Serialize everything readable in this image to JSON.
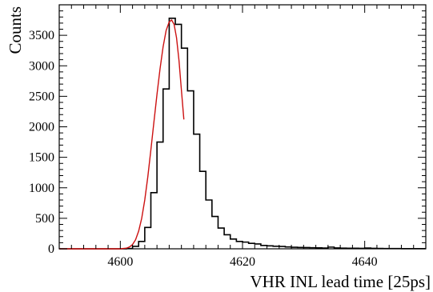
{
  "chart_data": {
    "type": "line",
    "title": "",
    "xlabel": "VHR INL lead time [25ps]",
    "ylabel": "Counts",
    "xlim": [
      4590,
      4650
    ],
    "ylim": [
      0,
      4000
    ],
    "x_ticks": [
      4600,
      4620,
      4640
    ],
    "x_tick_labels": [
      "4600",
      "4620",
      "4640"
    ],
    "y_ticks": [
      0,
      500,
      1000,
      1500,
      2000,
      2500,
      3000,
      3500
    ],
    "y_tick_labels": [
      "0",
      "500",
      "1000",
      "1500",
      "2000",
      "2500",
      "3000",
      "3500"
    ],
    "grid": false,
    "legend": "none",
    "series": [
      {
        "kind": "histogram",
        "color": "#000000",
        "bin_edges": [
          4590,
          4591,
          4592,
          4593,
          4594,
          4595,
          4596,
          4597,
          4598,
          4599,
          4600,
          4601,
          4602,
          4603,
          4604,
          4605,
          4606,
          4607,
          4608,
          4609,
          4610,
          4611,
          4612,
          4613,
          4614,
          4615,
          4616,
          4617,
          4618,
          4619,
          4620,
          4621,
          4622,
          4623,
          4624,
          4625,
          4626,
          4627,
          4628,
          4629,
          4630,
          4631,
          4632,
          4633,
          4634,
          4635,
          4636,
          4637,
          4638,
          4639,
          4640,
          4641,
          4642,
          4643,
          4644,
          4645,
          4646,
          4647,
          4648,
          4649,
          4650
        ],
        "values": [
          0,
          0,
          0,
          0,
          0,
          0,
          0,
          0,
          0,
          0,
          0,
          5,
          40,
          120,
          350,
          920,
          1750,
          2620,
          3780,
          3680,
          3290,
          2590,
          1880,
          1270,
          800,
          530,
          340,
          230,
          160,
          120,
          110,
          90,
          80,
          55,
          48,
          42,
          38,
          30,
          25,
          22,
          20,
          18,
          15,
          13,
          28,
          14,
          11,
          10,
          9,
          8,
          12,
          7,
          6,
          5,
          5,
          4,
          3,
          3,
          2,
          2
        ]
      },
      {
        "kind": "fit",
        "color": "#cc1111",
        "x": [
          4590,
          4591,
          4592,
          4593,
          4594,
          4595,
          4596,
          4597,
          4598,
          4599,
          4600,
          4601,
          4601.5,
          4602,
          4602.5,
          4603,
          4603.5,
          4604,
          4604.5,
          4605,
          4605.5,
          4606,
          4606.5,
          4607,
          4607.5,
          4608,
          4608.4,
          4608.8,
          4609.2,
          4609.6,
          4610,
          4610.4
        ],
        "y": [
          0,
          0,
          0,
          0,
          0,
          0,
          0,
          0,
          0,
          0,
          0,
          10,
          30,
          70,
          150,
          290,
          500,
          800,
          1180,
          1620,
          2080,
          2530,
          2950,
          3310,
          3580,
          3720,
          3750,
          3680,
          3460,
          3090,
          2600,
          2120
        ]
      }
    ]
  }
}
